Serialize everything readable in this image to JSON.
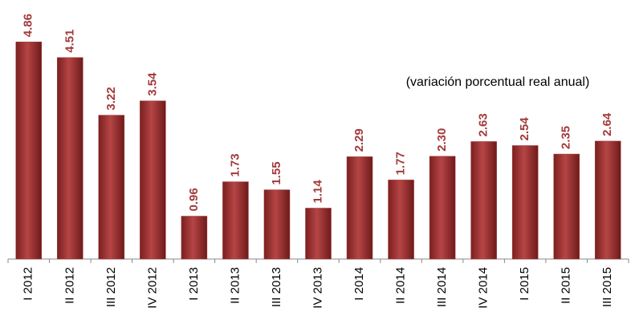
{
  "chart_data": {
    "type": "bar",
    "subtitle": "(variación porcentual real anual)",
    "categories": [
      "I 2012",
      "II 2012",
      "III 2012",
      "IV 2012",
      "I 2013",
      "II 2013",
      "III 2013",
      "IV 2013",
      "I 2014",
      "II 2014",
      "III 2014",
      "IV 2014",
      "I 2015",
      "II 2015",
      "III 2015"
    ],
    "values": [
      4.86,
      4.51,
      3.22,
      3.54,
      0.96,
      1.73,
      1.55,
      1.14,
      2.29,
      1.77,
      2.3,
      2.63,
      2.54,
      2.35,
      2.64
    ],
    "value_labels": [
      "4.86",
      "4.51",
      "3.22",
      "3.54",
      "0.96",
      "1.73",
      "1.55",
      "1.14",
      "2.29",
      "1.77",
      "2.30",
      "2.63",
      "2.54",
      "2.35",
      "2.64"
    ],
    "color": "#a33a3a",
    "ylim": [
      0,
      5.6
    ]
  }
}
